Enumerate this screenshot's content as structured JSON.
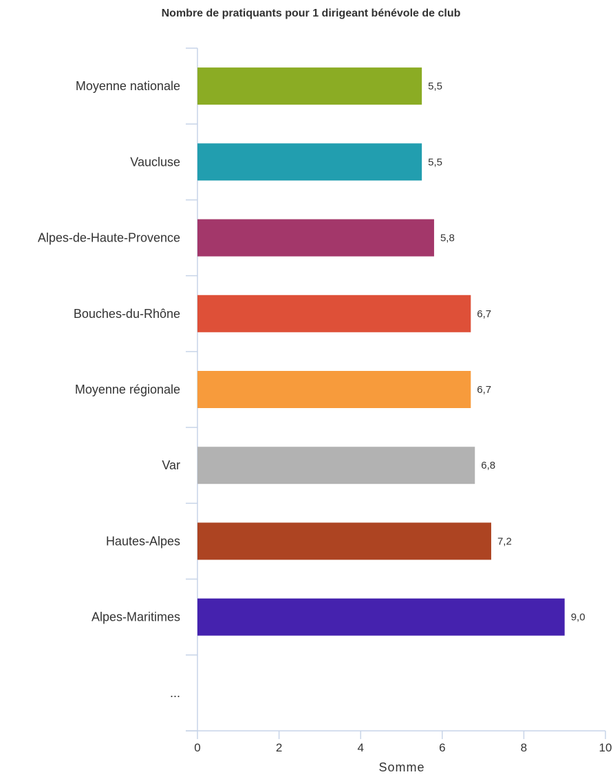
{
  "chart_data": {
    "type": "bar",
    "orientation": "horizontal",
    "title": "Nombre de pratiquants pour 1 dirigeant bénévole de club",
    "xlabel": "Somme",
    "ylabel": "",
    "xlim": [
      0,
      10
    ],
    "x_ticks": [
      0,
      2,
      4,
      6,
      8,
      10
    ],
    "grid": false,
    "legend": "none",
    "categories": [
      "Moyenne nationale",
      "Vaucluse",
      "Alpes-de-Haute-Provence",
      "Bouches-du-Rhône",
      "Moyenne régionale",
      "Var",
      "Hautes-Alpes",
      "Alpes-Maritimes",
      "..."
    ],
    "values": [
      5.5,
      5.5,
      5.8,
      6.7,
      6.7,
      6.8,
      7.2,
      9.0,
      null
    ],
    "value_labels": [
      "5,5",
      "5,5",
      "5,8",
      "6,7",
      "6,7",
      "6,8",
      "7,2",
      "9,0",
      ""
    ],
    "colors": [
      "#8bac24",
      "#229eaf",
      "#a3376a",
      "#de5038",
      "#f79b3c",
      "#b2b2b2",
      "#ad4422",
      "#4522ae",
      "#ffffff"
    ]
  }
}
